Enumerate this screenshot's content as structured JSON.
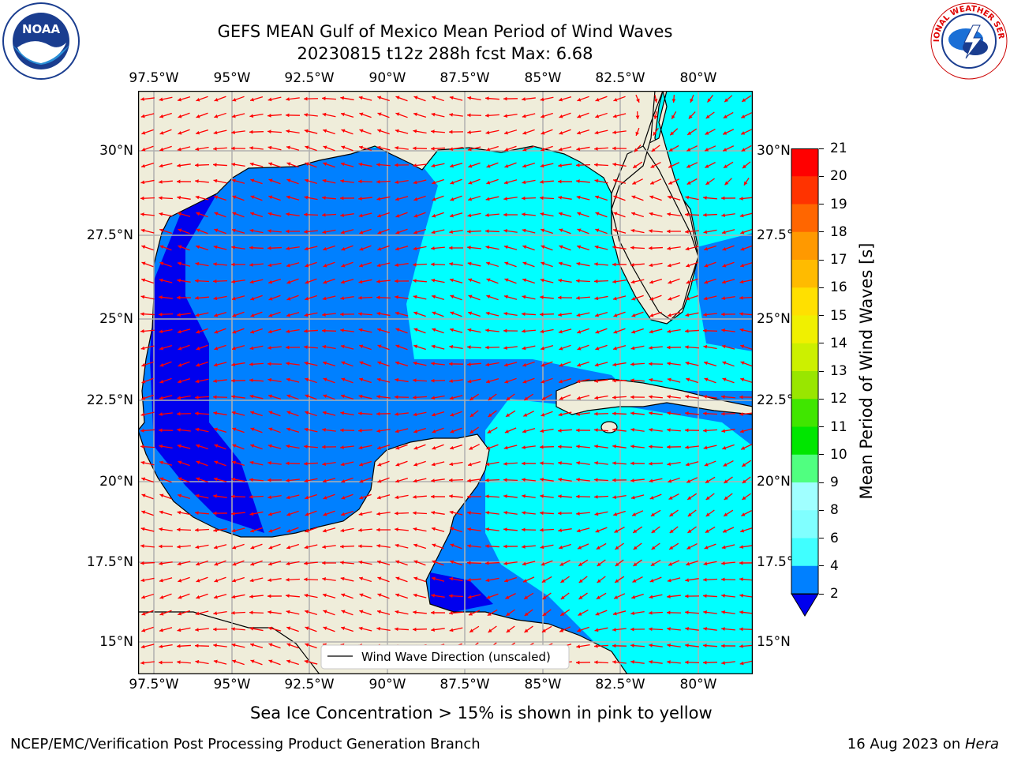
{
  "header": {
    "title_line1": "GEFS MEAN Gulf of Mexico Mean Period of Wind Waves",
    "title_line2": "20230815 t12z 288h fcst   Max: 6.68"
  },
  "logos": {
    "noaa_text": "NOAA",
    "noaa_ring": "NATIONAL OCEANIC AND ATMOSPHERIC ADMINISTRATION · U.S. DEPARTMENT OF COMMERCE",
    "nws_ring": "NATIONAL WEATHER SERVICE"
  },
  "map": {
    "lon_ticks": [
      "97.5°W",
      "95°W",
      "92.5°W",
      "90°W",
      "87.5°W",
      "85°W",
      "82.5°W",
      "80°W"
    ],
    "lat_ticks": [
      "30°N",
      "27.5°N",
      "25°N",
      "22.5°N",
      "20°N",
      "17.5°N",
      "15°N"
    ],
    "legend_label": "Wind Wave Direction (unscaled)",
    "colors": {
      "land": "#efedda",
      "ocean_dark": "#0000ee",
      "ocean_mid": "#0080ff",
      "ocean_light": "#00ffff",
      "arrow": "#ff0000",
      "grid": "#b0b0b0"
    }
  },
  "colorbar": {
    "label": "Mean Period of Wind Waves [s]",
    "ticks": [
      "2",
      "4",
      "6",
      "8",
      "9",
      "10",
      "11",
      "12",
      "13",
      "14",
      "15",
      "16",
      "17",
      "18",
      "19",
      "20",
      "21"
    ],
    "colors": [
      "#0080ff",
      "#00ffff",
      "#40ffff",
      "#80ffff",
      "#a0ffff",
      "#50ff80",
      "#00e600",
      "#40e600",
      "#99e600",
      "#ccf000",
      "#f0f000",
      "#ffe000",
      "#ffbb00",
      "#ff9900",
      "#ff6600",
      "#ff3300",
      "#ff0000"
    ],
    "extend_color": "#0000ee"
  },
  "note": "Sea Ice Concentration > 15% is shown in pink to yellow",
  "footer": {
    "left": "NCEP/EMC/Verification Post Processing Product Generation Branch",
    "right_date": "16 Aug 2023 on ",
    "right_host": "Hera"
  }
}
